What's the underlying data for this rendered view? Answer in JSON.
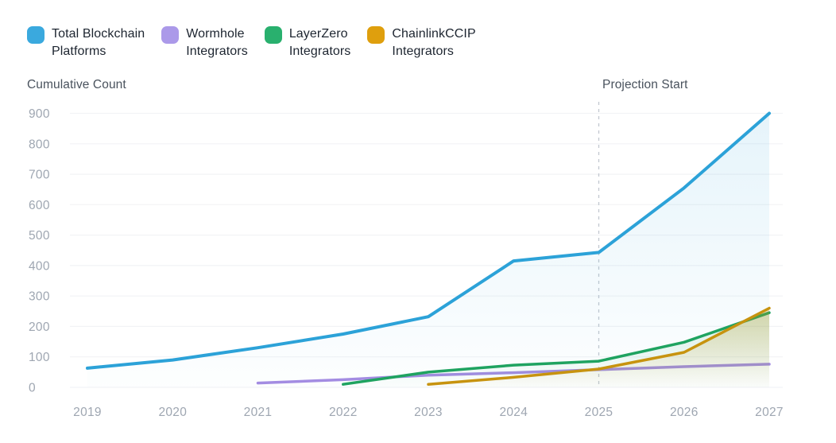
{
  "legend": {
    "items": [
      {
        "label": "Total Blockchain\nPlatforms",
        "color": "#3aa9de"
      },
      {
        "label": "Wormhole\nIntegrators",
        "color": "#ab99e9"
      },
      {
        "label": "LayerZero\nIntegrators",
        "color": "#29b06e"
      },
      {
        "label": "ChainlinkCCIP\nIntegrators",
        "color": "#df9f0d"
      }
    ]
  },
  "titles": {
    "y_axis_title": "Cumulative Count",
    "projection_label": "Projection Start"
  },
  "chart_data": {
    "type": "line",
    "title": "",
    "xlabel": "",
    "ylabel": "Cumulative Count",
    "x": [
      2019,
      2020,
      2021,
      2022,
      2023,
      2024,
      2025,
      2026,
      2027
    ],
    "series": [
      {
        "name": "Total Blockchain Platforms",
        "color": "#2ca2d8",
        "fill_opacity": 0.12,
        "values": [
          63,
          90,
          130,
          175,
          232,
          415,
          443,
          655,
          900
        ]
      },
      {
        "name": "Wormhole Integrators",
        "color": "#a38ce2",
        "fill_opacity": 0,
        "values": [
          null,
          null,
          14,
          25,
          40,
          48,
          58,
          68,
          76
        ]
      },
      {
        "name": "LayerZero Integrators",
        "color": "#1fa360",
        "fill_opacity": 0.15,
        "values": [
          null,
          null,
          null,
          10,
          50,
          73,
          86,
          148,
          245
        ]
      },
      {
        "name": "ChainlinkCCIP Integrators",
        "color": "#c7930f",
        "fill_opacity": 0.28,
        "values": [
          null,
          null,
          null,
          null,
          10,
          33,
          60,
          115,
          260
        ]
      }
    ],
    "y_ticks": [
      0,
      100,
      200,
      300,
      400,
      500,
      600,
      700,
      800,
      900
    ],
    "ylim": [
      0,
      900
    ],
    "projection_start_x": 2025,
    "grid": "horizontal",
    "legend_position": "top-left",
    "annotations": [
      {
        "text": "Projection Start",
        "x": 2025,
        "style": "dashed-vertical-line"
      }
    ]
  },
  "colors": {
    "background": "#ffffff",
    "gridline": "#f2f3f6",
    "dashed_line": "#c2c8d0",
    "tick_text": "#9ea6b1",
    "title_text": "#49525d",
    "legend_text": "#1d2530"
  }
}
